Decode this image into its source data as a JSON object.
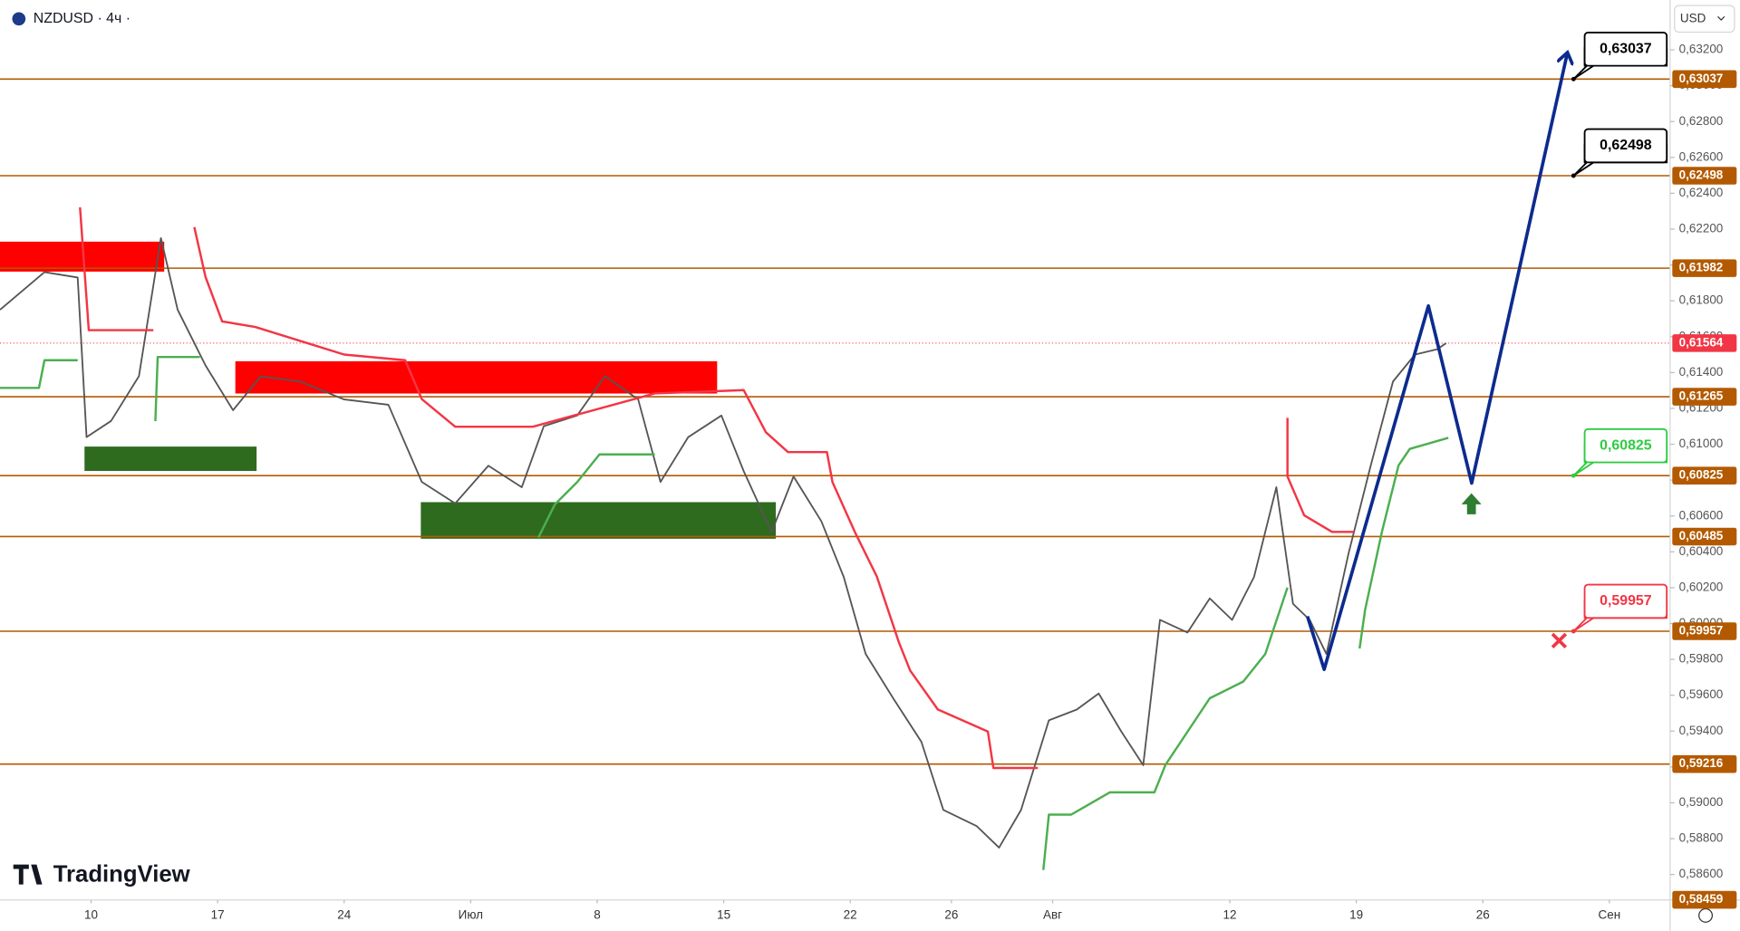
{
  "chart_data": {
    "type": "line",
    "title": "NZDUSD · 4ч ·",
    "currency": "USD",
    "brand": "TradingView",
    "xlim": [
      -3.6,
      62.4
    ],
    "ylim": [
      0.58458,
      0.63478
    ],
    "xticks": [
      {
        "value": 0,
        "label": "10"
      },
      {
        "value": 5,
        "label": "17"
      },
      {
        "value": 10,
        "label": "24"
      },
      {
        "value": 15,
        "label": "Июл"
      },
      {
        "value": 20,
        "label": "8"
      },
      {
        "value": 25,
        "label": "15"
      },
      {
        "value": 30,
        "label": "22"
      },
      {
        "value": 34,
        "label": "26"
      },
      {
        "value": 38,
        "label": "Авг"
      },
      {
        "value": 45,
        "label": "12"
      },
      {
        "value": 50,
        "label": "19"
      },
      {
        "value": 55,
        "label": "26"
      },
      {
        "value": 60,
        "label": "Сен"
      }
    ],
    "yticks": [
      {
        "value": 0.632,
        "label": "0,63200"
      },
      {
        "value": 0.63,
        "label": "0,63000"
      },
      {
        "value": 0.628,
        "label": "0,62800"
      },
      {
        "value": 0.626,
        "label": "0,62600"
      },
      {
        "value": 0.624,
        "label": "0,62400"
      },
      {
        "value": 0.622,
        "label": "0,62200"
      },
      {
        "value": 0.62,
        "label": "0,62000"
      },
      {
        "value": 0.618,
        "label": "0,61800"
      },
      {
        "value": 0.616,
        "label": "0,61600"
      },
      {
        "value": 0.614,
        "label": "0,61400"
      },
      {
        "value": 0.612,
        "label": "0,61200"
      },
      {
        "value": 0.61,
        "label": "0,61000"
      },
      {
        "value": 0.608,
        "label": "0,60800"
      },
      {
        "value": 0.606,
        "label": "0,60600"
      },
      {
        "value": 0.604,
        "label": "0,60400"
      },
      {
        "value": 0.602,
        "label": "0,60200"
      },
      {
        "value": 0.6,
        "label": "0,60000"
      },
      {
        "value": 0.598,
        "label": "0,59800"
      },
      {
        "value": 0.596,
        "label": "0,59600"
      },
      {
        "value": 0.594,
        "label": "0,59400"
      },
      {
        "value": 0.592,
        "label": "0,59200"
      },
      {
        "value": 0.59,
        "label": "0,59000"
      },
      {
        "value": 0.588,
        "label": "0,58800"
      },
      {
        "value": 0.586,
        "label": "0,58600"
      }
    ],
    "levels_color": "#b35a00",
    "levels": [
      {
        "value": 0.63037,
        "label": "0,63037"
      },
      {
        "value": 0.62498,
        "label": "0,62498"
      },
      {
        "value": 0.61982,
        "label": "0,61982"
      },
      {
        "value": 0.61265,
        "label": "0,61265"
      },
      {
        "value": 0.60825,
        "label": "0,60825"
      },
      {
        "value": 0.60485,
        "label": "0,60485"
      },
      {
        "value": 0.59957,
        "label": "0,59957"
      },
      {
        "value": 0.59216,
        "label": "0,59216"
      }
    ],
    "bottom_label": {
      "value": 0.58459,
      "label": "0,58459"
    },
    "last_price": {
      "value": 0.61564,
      "label": "0,61564",
      "color": "#f23645"
    },
    "zones": [
      {
        "x": [
          -3.6,
          2.89
        ],
        "y": [
          0.6213,
          0.61963
        ],
        "color": "#ff0000"
      },
      {
        "x": [
          5.7,
          24.74
        ],
        "y": [
          0.61463,
          0.61283
        ],
        "color": "#ff0000"
      },
      {
        "x": [
          -0.26,
          6.54
        ],
        "y": [
          0.60987,
          0.60851
        ],
        "color": "#2e6b1f"
      },
      {
        "x": [
          13.03,
          27.06
        ],
        "y": [
          0.60677,
          0.60473
        ],
        "color": "#2e6b1f"
      }
    ],
    "series": [
      {
        "color": "#555555",
        "width": 1.5,
        "x": [
          -3.6,
          -1.84,
          -0.53,
          -0.18,
          0.79,
          1.89,
          2.76,
          3.42,
          4.52,
          5.61,
          6.71,
          8.25,
          10,
          11.75,
          13.07,
          14.39,
          15.7,
          17.02,
          17.89,
          19.21,
          20.31,
          21.62,
          22.5,
          23.6,
          24.91,
          25.79,
          26.89,
          27.76,
          28.86,
          29.74,
          30.61,
          31.71,
          32.81,
          33.68,
          35,
          35.88,
          36.75,
          37.85,
          38.95,
          39.82,
          40.7,
          41.58,
          42.24,
          43.33,
          44.21,
          45.09,
          45.96,
          46.84,
          47.5,
          48.16,
          48.82,
          49.69,
          50.57,
          51.45,
          52.32,
          53.2,
          53.55
        ],
        "values": [
          0.6175,
          0.6196,
          0.6193,
          0.6104,
          0.6113,
          0.6138,
          0.6215,
          0.6175,
          0.6144,
          0.6119,
          0.6138,
          0.6135,
          0.6125,
          0.6122,
          0.6079,
          0.6067,
          0.6088,
          0.6076,
          0.611,
          0.6116,
          0.6138,
          0.6125,
          0.6079,
          0.6104,
          0.6116,
          0.6085,
          0.6051,
          0.6082,
          0.6057,
          0.6026,
          0.5983,
          0.5958,
          0.5934,
          0.5896,
          0.5887,
          0.5875,
          0.5896,
          0.5946,
          0.5952,
          0.5961,
          0.594,
          0.5921,
          0.6002,
          0.5995,
          0.6014,
          0.6002,
          0.6026,
          0.6076,
          0.6011,
          0.6002,
          0.5983,
          0.6039,
          0.6088,
          0.6135,
          0.615,
          0.6153,
          0.61564
        ]
      },
      {
        "color": "#f23645",
        "width": 2,
        "x": [
          -0.44,
          -0.09,
          2.46,
          null,
          4.08,
          4.52,
          5.18,
          6.49,
          10,
          12.41,
          13.07,
          14.39,
          17.46,
          22.28,
          25.79,
          26.67,
          27.54,
          29.08,
          29.3,
          30.18,
          31.05,
          31.93,
          32.37,
          33.46,
          35.44,
          35.66,
          37.41,
          null,
          47.28,
          47.28,
          47.94,
          49.04,
          49.91
        ],
        "values": [
          0.62322,
          0.61636,
          0.61636,
          null,
          0.62211,
          0.61933,
          0.61685,
          0.61654,
          0.615,
          0.61469,
          0.61252,
          0.61098,
          0.61098,
          0.61283,
          0.61302,
          0.61067,
          0.60956,
          0.60956,
          0.60789,
          0.60511,
          0.60263,
          0.59892,
          0.59738,
          0.59521,
          0.59398,
          0.59194,
          0.59194,
          null,
          0.61147,
          0.6082,
          0.60603,
          0.60511,
          0.60511
        ]
      },
      {
        "color": "#4caf50",
        "width": 2,
        "x": [
          -3.6,
          -2.06,
          -1.84,
          -0.53,
          null,
          2.54,
          2.63,
          4.3,
          null,
          17.68,
          18.33,
          19.21,
          20.09,
          22.28,
          null,
          37.63,
          37.85,
          38.73,
          40.26,
          42.02,
          42.46,
          44.21,
          45.53,
          46.4,
          47.28,
          null,
          50.13,
          50.35,
          51.01,
          51.67,
          52.11,
          53.64
        ],
        "values": [
          0.61314,
          0.61314,
          0.61469,
          0.61469,
          null,
          0.61129,
          0.61487,
          0.61487,
          null,
          0.6048,
          0.60665,
          0.60789,
          0.60943,
          0.60943,
          null,
          0.58625,
          0.58934,
          0.58934,
          0.59058,
          0.59058,
          0.59212,
          0.59583,
          0.59676,
          0.5983,
          0.60201,
          null,
          0.59861,
          0.60078,
          0.60511,
          0.60882,
          0.60974,
          0.61036
        ]
      },
      {
        "color": "#0d2b8e",
        "width": 3,
        "x": [
          48.07,
          48.73,
          52.85,
          54.56,
          58.33
        ],
        "values": [
          0.6004,
          0.59744,
          0.61772,
          0.60783,
          0.63176
        ]
      }
    ],
    "callouts": [
      {
        "value": 0.63037,
        "label": "0,63037",
        "color": "#000000"
      },
      {
        "value": 0.62498,
        "label": "0,62498",
        "color": "#000000"
      },
      {
        "value": 0.60825,
        "label": "0,60825",
        "color": "#2ecc40"
      },
      {
        "value": 0.59957,
        "label": "0,59957",
        "color": "#f23645"
      }
    ]
  }
}
